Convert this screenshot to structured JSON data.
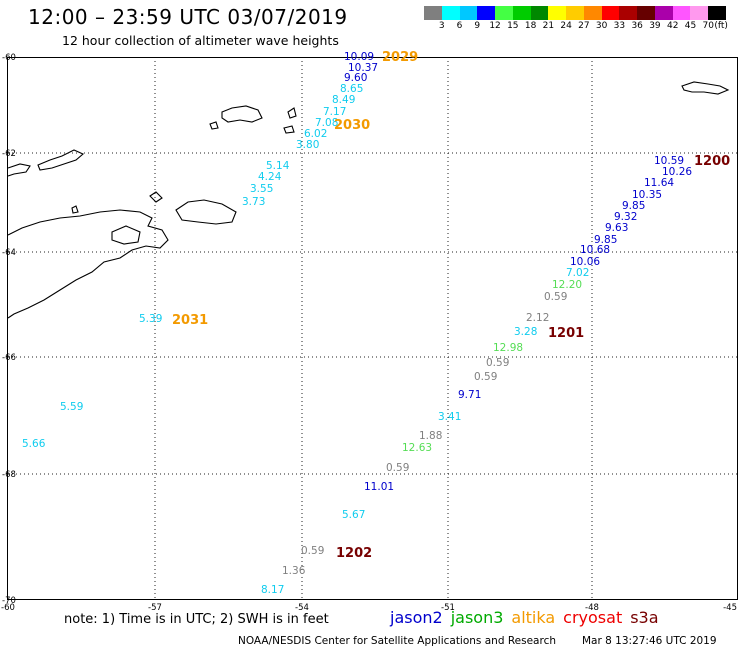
{
  "header": {
    "title": "12:00 – 23:59 UTC 03/07/2019",
    "subtitle": "12 hour collection of altimeter wave heights"
  },
  "legend": {
    "colors": [
      "#7f7f7f",
      "#00ffff",
      "#00c8ff",
      "#0000ff",
      "#44ff44",
      "#00cc00",
      "#008800",
      "#ffff00",
      "#ffcc00",
      "#ff8800",
      "#ff0000",
      "#aa0000",
      "#660000",
      "#aa00aa",
      "#ff55ff",
      "#ff99ee",
      "#000000"
    ],
    "labels": [
      "3",
      "6",
      "9",
      "12",
      "15",
      "18",
      "21",
      "24",
      "27",
      "30",
      "33",
      "36",
      "39",
      "42",
      "45",
      "70",
      "(ft)"
    ]
  },
  "map": {
    "lat_labels": [
      "-60",
      "-62",
      "-64",
      "-66",
      "-68",
      "-70"
    ],
    "lon_labels": [
      "-60",
      "-57",
      "-54",
      "-51",
      "-48",
      "-45"
    ]
  },
  "colors": {
    "gray": "#808080",
    "cyan": "#10ccee",
    "blue": "#0000cc",
    "lightgreen": "#55dd55",
    "orange": "#f39a00",
    "darkred": "#770000"
  },
  "wave_labels": [
    {
      "text": "10.09",
      "color": "blue"
    },
    {
      "text": "10.37",
      "color": "blue"
    },
    {
      "text": "9.60",
      "color": "blue"
    },
    {
      "text": "8.65",
      "color": "cyan"
    },
    {
      "text": "8.49",
      "color": "cyan"
    },
    {
      "text": "7.17",
      "color": "cyan"
    },
    {
      "text": "7.08",
      "color": "cyan"
    },
    {
      "text": "6.02",
      "color": "cyan"
    },
    {
      "text": "3.80",
      "color": "cyan"
    },
    {
      "text": "5.14",
      "color": "cyan"
    },
    {
      "text": "4.24",
      "color": "cyan"
    },
    {
      "text": "3.55",
      "color": "cyan"
    },
    {
      "text": "3.73",
      "color": "cyan"
    },
    {
      "text": "5.39",
      "color": "cyan"
    },
    {
      "text": "5.59",
      "color": "cyan"
    },
    {
      "text": "5.66",
      "color": "cyan"
    },
    {
      "text": "10.59",
      "color": "blue"
    },
    {
      "text": "10.26",
      "color": "blue"
    },
    {
      "text": "11.64",
      "color": "blue"
    },
    {
      "text": "10.35",
      "color": "blue"
    },
    {
      "text": "9.85",
      "color": "blue"
    },
    {
      "text": "9.32",
      "color": "blue"
    },
    {
      "text": "9.63",
      "color": "blue"
    },
    {
      "text": "9.85",
      "color": "blue"
    },
    {
      "text": "10.68",
      "color": "blue"
    },
    {
      "text": "10.06",
      "color": "blue"
    },
    {
      "text": "7.02",
      "color": "cyan"
    },
    {
      "text": "12.20",
      "color": "lightgreen"
    },
    {
      "text": "0.59",
      "color": "gray"
    },
    {
      "text": "2.12",
      "color": "gray"
    },
    {
      "text": "3.28",
      "color": "cyan"
    },
    {
      "text": "12.98",
      "color": "lightgreen"
    },
    {
      "text": "0.59",
      "color": "gray"
    },
    {
      "text": "0.59",
      "color": "gray"
    },
    {
      "text": "9.71",
      "color": "blue"
    },
    {
      "text": "3.41",
      "color": "cyan"
    },
    {
      "text": "1.88",
      "color": "gray"
    },
    {
      "text": "12.63",
      "color": "lightgreen"
    },
    {
      "text": "0.59",
      "color": "gray"
    },
    {
      "text": "11.01",
      "color": "blue"
    },
    {
      "text": "5.67",
      "color": "cyan"
    },
    {
      "text": "0.59",
      "color": "gray"
    },
    {
      "text": "1.36",
      "color": "gray"
    },
    {
      "text": "8.17",
      "color": "cyan"
    }
  ],
  "pass_labels": [
    {
      "text": "2029",
      "color": "orange"
    },
    {
      "text": "2030",
      "color": "orange"
    },
    {
      "text": "2031",
      "color": "orange"
    },
    {
      "text": "1200",
      "color": "darkred"
    },
    {
      "text": "1201",
      "color": "darkred"
    },
    {
      "text": "1202",
      "color": "darkred"
    }
  ],
  "footer": {
    "note": "note: 1) Time is in UTC; 2) SWH is in feet",
    "credit": "NOAA/NESDIS Center for Satellite Applications and Research",
    "timestamp": "Mar  8 13:27:46 UTC 2019"
  },
  "satellites": [
    {
      "name": "jason2",
      "color": "#0000cc"
    },
    {
      "name": "jason3",
      "color": "#00aa00"
    },
    {
      "name": "altika",
      "color": "#f39a00"
    },
    {
      "name": "cryosat",
      "color": "#ee0000"
    },
    {
      "name": "s3a",
      "color": "#770000"
    }
  ]
}
